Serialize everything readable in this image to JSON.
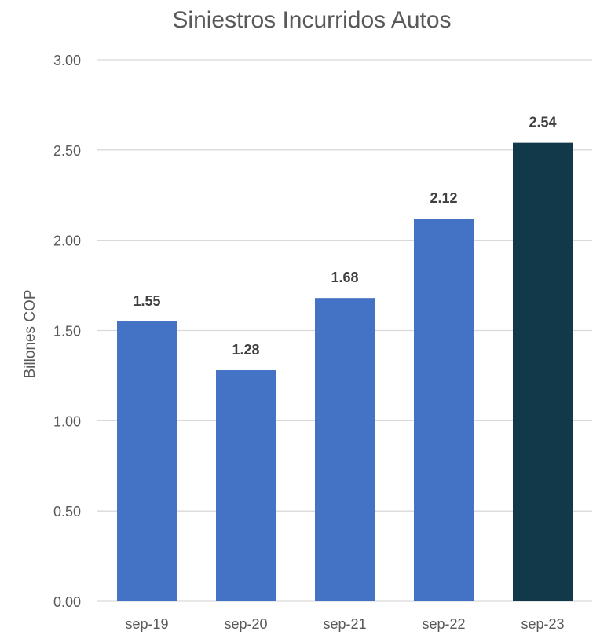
{
  "chart_data": {
    "type": "bar",
    "title": "Siniestros Incurridos Autos",
    "xlabel": "",
    "ylabel": "Billones COP",
    "categories": [
      "sep-19",
      "sep-20",
      "sep-21",
      "sep-22",
      "sep-23"
    ],
    "series": [
      {
        "values": [
          1.55,
          1.28,
          1.68,
          2.12,
          2.54
        ],
        "colors": [
          "#4472C4",
          "#4472C4",
          "#4472C4",
          "#4472C4",
          "#12394A"
        ]
      }
    ],
    "data_labels": [
      "1.55",
      "1.28",
      "1.68",
      "2.12",
      "2.54"
    ],
    "ylim": [
      0,
      3
    ],
    "yticks": [
      0,
      0.5,
      1,
      1.5,
      2,
      2.5,
      3
    ],
    "ytick_labels": [
      "0.00",
      "0.50",
      "1.00",
      "1.50",
      "2.00",
      "2.50",
      "3.00"
    ],
    "grid": true,
    "legend": "none",
    "colors": {
      "gridline": "#D9D9D9",
      "text": "#595959",
      "title": "#595959",
      "data_label": "#404040"
    }
  }
}
